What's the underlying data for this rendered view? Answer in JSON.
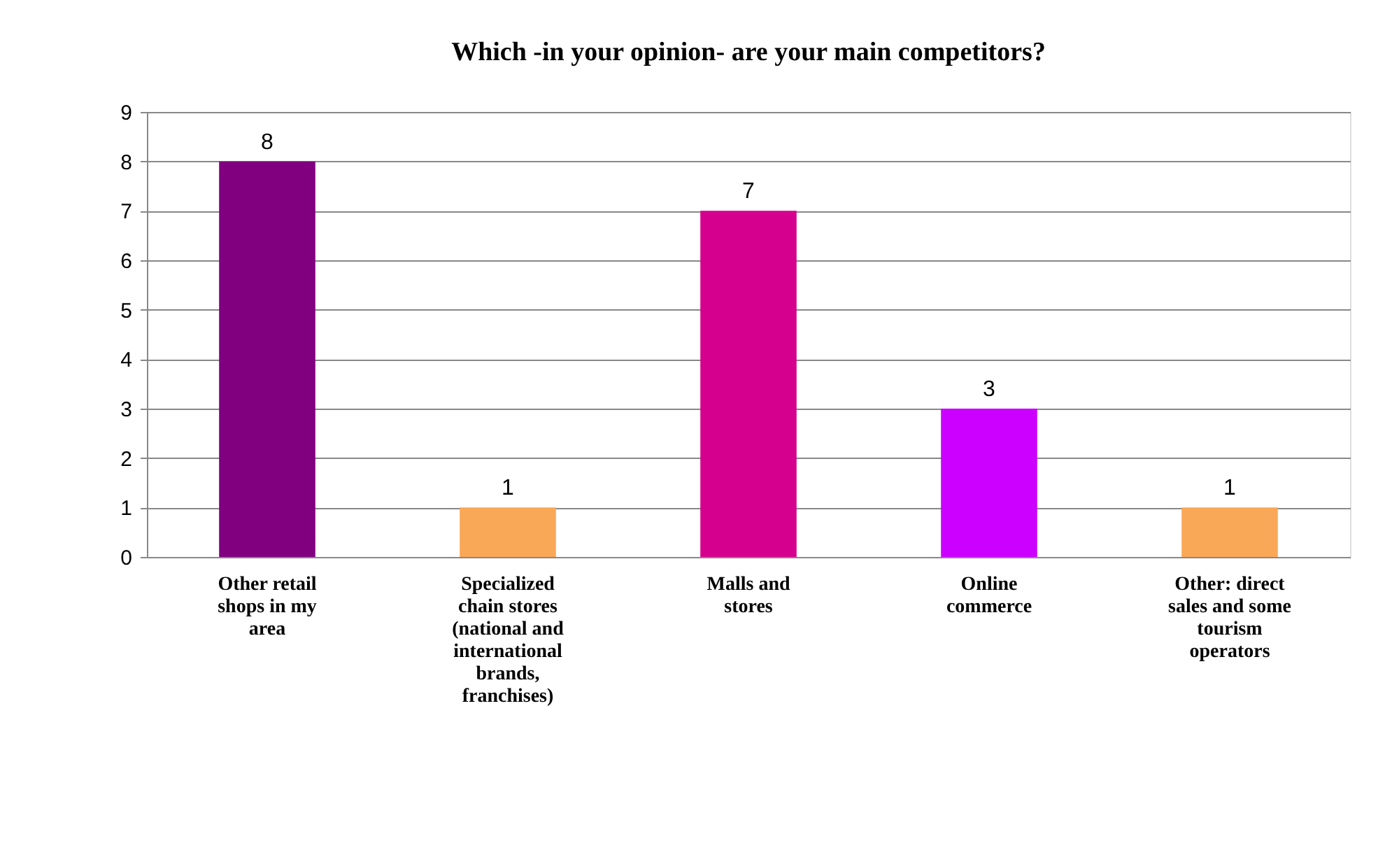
{
  "chart_data": {
    "type": "bar",
    "title": "Which -in your opinion-  are your main competitors?",
    "categories": [
      "Other retail shops in my area",
      "Specialized chain stores (national and international brands, franchises)",
      "Malls and stores",
      "Online commerce",
      "Other: direct sales and some tourism operators"
    ],
    "values": [
      8,
      1,
      7,
      3,
      1
    ],
    "colors": [
      "#800080",
      "#f9a857",
      "#d6008f",
      "#cc00ff",
      "#f9a857"
    ],
    "ylim": [
      0,
      9
    ],
    "yticks": [
      0,
      1,
      2,
      3,
      4,
      5,
      6,
      7,
      8,
      9
    ],
    "grid": "y",
    "data_labels": true
  }
}
